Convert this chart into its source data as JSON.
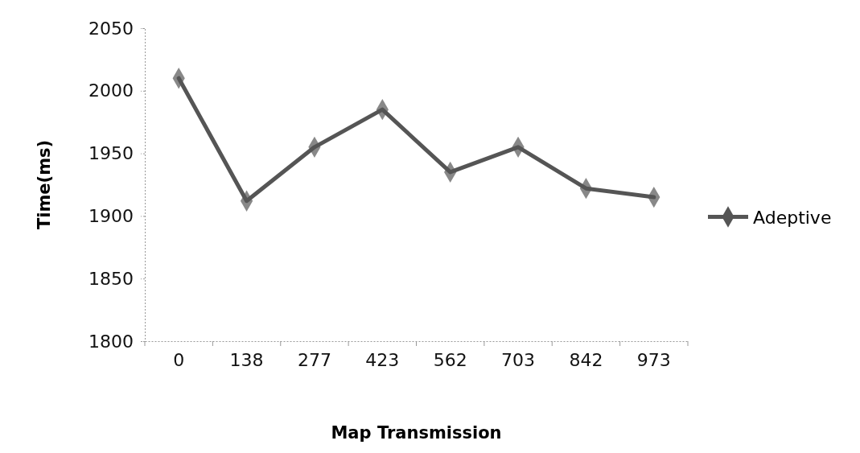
{
  "chart_data": {
    "type": "line",
    "xlabel": "Map Transmission",
    "ylabel": "Time(ms)",
    "categories": [
      "0",
      "138",
      "277",
      "423",
      "562",
      "703",
      "842",
      "973"
    ],
    "series": [
      {
        "name": "Adeptive",
        "color": "#555555",
        "values": [
          2010,
          1912,
          1955,
          1985,
          1935,
          1955,
          1922,
          1915
        ]
      }
    ],
    "ylim": [
      1800,
      2050
    ],
    "yticks": [
      1800,
      1850,
      1900,
      1950,
      2000,
      2050
    ],
    "grid": false,
    "legend": "right",
    "marker": "diamond",
    "line_style": "solid"
  }
}
